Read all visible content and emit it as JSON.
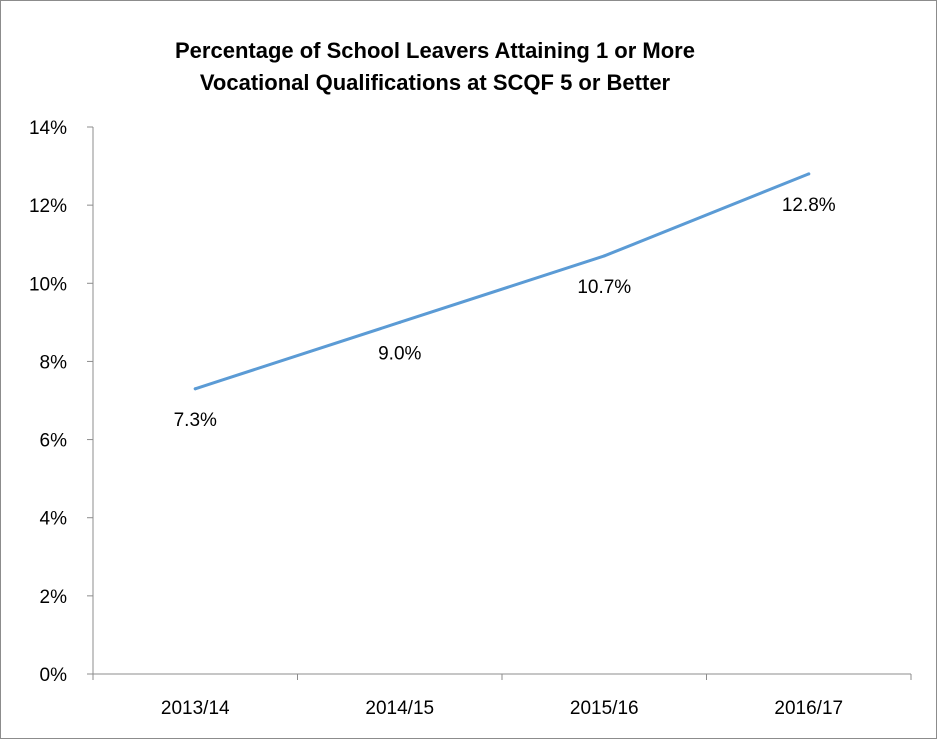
{
  "chart_data": {
    "type": "line",
    "title_lines": [
      "Percentage of School Leavers Attaining 1 or More",
      "Vocational Qualifications at SCQF 5 or Better"
    ],
    "categories": [
      "2013/14",
      "2014/15",
      "2015/16",
      "2016/17"
    ],
    "values": [
      7.3,
      9.0,
      10.7,
      12.8
    ],
    "data_labels": [
      "7.3%",
      "9.0%",
      "10.7%",
      "12.8%"
    ],
    "ylim": [
      0,
      14
    ],
    "y_ticks": [
      0,
      2,
      4,
      6,
      8,
      10,
      12,
      14
    ],
    "y_tick_labels": [
      "0%",
      "2%",
      "4%",
      "6%",
      "8%",
      "10%",
      "12%",
      "14%"
    ],
    "xlabel": "",
    "ylabel": "",
    "grid": false,
    "legend": "none",
    "series_color": "#5b9bd5"
  }
}
